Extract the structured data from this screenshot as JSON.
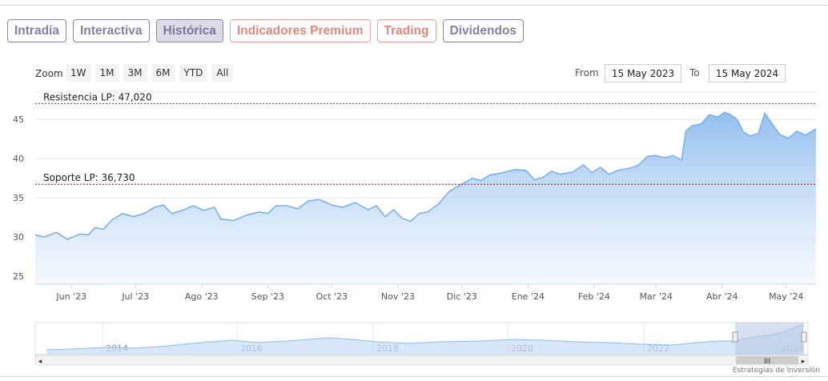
{
  "tabs": [
    {
      "label": "Intradía",
      "style": "normal"
    },
    {
      "label": "Interactiva",
      "style": "normal"
    },
    {
      "label": "Histórica",
      "style": "active"
    },
    {
      "label": "Indicadores Premium",
      "style": "premium"
    },
    {
      "label": "Trading",
      "style": "premium"
    },
    {
      "label": "Dividendos",
      "style": "normal"
    }
  ],
  "zoom": {
    "label": "Zoom",
    "buttons": [
      "1W",
      "1M",
      "3M",
      "6M",
      "YTD",
      "All"
    ]
  },
  "range": {
    "from_label": "From",
    "from_value": "15 May 2023",
    "to_label": "To",
    "to_value": "15 May 2024"
  },
  "colors": {
    "series_line": "#7cb0e8",
    "area_top": "#8dbbed",
    "area_bottom": "#eef5fd",
    "resistance_line": "#2e6b2e",
    "support_line": "#8b1a1a",
    "navigator_mask": "#b7c7e0",
    "tab_normal": "#847fa6",
    "tab_premium": "#e0877d"
  },
  "chart_data": {
    "type": "area",
    "x_range": [
      "2023-05-15",
      "2024-05-15"
    ],
    "ylim": [
      24,
      49
    ],
    "y_ticks": [
      25,
      30,
      35,
      40,
      45
    ],
    "x_ticks": [
      {
        "date": "2023-06-01",
        "label": "Jun '23"
      },
      {
        "date": "2023-07-01",
        "label": "Jul '23"
      },
      {
        "date": "2023-08-01",
        "label": "Ago '23"
      },
      {
        "date": "2023-09-01",
        "label": "Sep '23"
      },
      {
        "date": "2023-10-01",
        "label": "Oct '23"
      },
      {
        "date": "2023-11-01",
        "label": "Nov '23"
      },
      {
        "date": "2023-12-01",
        "label": "Dic '23"
      },
      {
        "date": "2024-01-01",
        "label": "Ene '24"
      },
      {
        "date": "2024-02-01",
        "label": "Feb '24"
      },
      {
        "date": "2024-03-01",
        "label": "Mar '24"
      },
      {
        "date": "2024-04-01",
        "label": "Abr '24"
      },
      {
        "date": "2024-05-01",
        "label": "May '24"
      }
    ],
    "grid": true,
    "reference_lines": [
      {
        "label": "Resistencia LP: 47,020",
        "value": 47.02,
        "style": "dashed",
        "color": "#2e6b2e"
      },
      {
        "label": "Soporte LP: 36,730",
        "value": 36.73,
        "style": "dashed",
        "color": "#8b1a1a"
      }
    ],
    "series": [
      {
        "points": [
          [
            "2023-05-15",
            30.3
          ],
          [
            "2023-05-19",
            30.0
          ],
          [
            "2023-05-25",
            30.6
          ],
          [
            "2023-05-30",
            29.7
          ],
          [
            "2023-06-05",
            30.4
          ],
          [
            "2023-06-09",
            30.3
          ],
          [
            "2023-06-12",
            31.2
          ],
          [
            "2023-06-16",
            31.0
          ],
          [
            "2023-06-20",
            32.2
          ],
          [
            "2023-06-25",
            33.0
          ],
          [
            "2023-06-30",
            32.6
          ],
          [
            "2023-07-05",
            33.0
          ],
          [
            "2023-07-10",
            33.8
          ],
          [
            "2023-07-14",
            34.1
          ],
          [
            "2023-07-18",
            33.0
          ],
          [
            "2023-07-24",
            33.5
          ],
          [
            "2023-07-28",
            34.0
          ],
          [
            "2023-08-02",
            33.4
          ],
          [
            "2023-08-07",
            33.8
          ],
          [
            "2023-08-10",
            32.3
          ],
          [
            "2023-08-16",
            32.1
          ],
          [
            "2023-08-22",
            32.8
          ],
          [
            "2023-08-28",
            33.2
          ],
          [
            "2023-09-01",
            33.0
          ],
          [
            "2023-09-05",
            34.0
          ],
          [
            "2023-09-10",
            34.0
          ],
          [
            "2023-09-15",
            33.6
          ],
          [
            "2023-09-20",
            34.6
          ],
          [
            "2023-09-25",
            34.8
          ],
          [
            "2023-10-01",
            34.1
          ],
          [
            "2023-10-06",
            33.8
          ],
          [
            "2023-10-12",
            34.4
          ],
          [
            "2023-10-18",
            33.5
          ],
          [
            "2023-10-22",
            34.0
          ],
          [
            "2023-10-26",
            32.6
          ],
          [
            "2023-10-30",
            33.5
          ],
          [
            "2023-11-03",
            32.4
          ],
          [
            "2023-11-07",
            32.0
          ],
          [
            "2023-11-11",
            33.0
          ],
          [
            "2023-11-15",
            33.2
          ],
          [
            "2023-11-20",
            34.2
          ],
          [
            "2023-11-25",
            35.8
          ],
          [
            "2023-11-28",
            36.3
          ],
          [
            "2023-12-02",
            36.9
          ],
          [
            "2023-12-06",
            37.5
          ],
          [
            "2023-12-10",
            37.2
          ],
          [
            "2023-12-14",
            37.9
          ],
          [
            "2023-12-20",
            38.2
          ],
          [
            "2023-12-26",
            38.6
          ],
          [
            "2023-12-31",
            38.5
          ],
          [
            "2024-01-04",
            37.3
          ],
          [
            "2024-01-08",
            37.6
          ],
          [
            "2024-01-12",
            38.4
          ],
          [
            "2024-01-16",
            38.0
          ],
          [
            "2024-01-22",
            38.3
          ],
          [
            "2024-01-27",
            39.2
          ],
          [
            "2024-01-31",
            38.2
          ],
          [
            "2024-02-04",
            38.9
          ],
          [
            "2024-02-08",
            38.0
          ],
          [
            "2024-02-12",
            38.5
          ],
          [
            "2024-02-18",
            38.8
          ],
          [
            "2024-02-22",
            39.2
          ],
          [
            "2024-02-26",
            40.3
          ],
          [
            "2024-03-01",
            40.4
          ],
          [
            "2024-03-05",
            40.1
          ],
          [
            "2024-03-09",
            40.4
          ],
          [
            "2024-03-13",
            39.8
          ],
          [
            "2024-03-15",
            43.5
          ],
          [
            "2024-03-18",
            44.2
          ],
          [
            "2024-03-22",
            44.4
          ],
          [
            "2024-03-26",
            45.6
          ],
          [
            "2024-03-30",
            45.3
          ],
          [
            "2024-04-02",
            45.9
          ],
          [
            "2024-04-05",
            45.6
          ],
          [
            "2024-04-08",
            45.0
          ],
          [
            "2024-04-11",
            43.4
          ],
          [
            "2024-04-14",
            42.9
          ],
          [
            "2024-04-18",
            43.2
          ],
          [
            "2024-04-21",
            45.8
          ],
          [
            "2024-04-24",
            44.6
          ],
          [
            "2024-04-28",
            43.1
          ],
          [
            "2024-05-02",
            42.6
          ],
          [
            "2024-05-06",
            43.5
          ],
          [
            "2024-05-10",
            43.0
          ],
          [
            "2024-05-15",
            43.8
          ]
        ]
      }
    ]
  },
  "navigator": {
    "year_labels": [
      "2014",
      "2016",
      "2018",
      "2020",
      "2022",
      "2024"
    ],
    "scroll_thumb_glyph": "III",
    "scroll_left_glyph": "◂",
    "scroll_right_glyph": "▸"
  },
  "credit": "Estrategias de Inversión"
}
